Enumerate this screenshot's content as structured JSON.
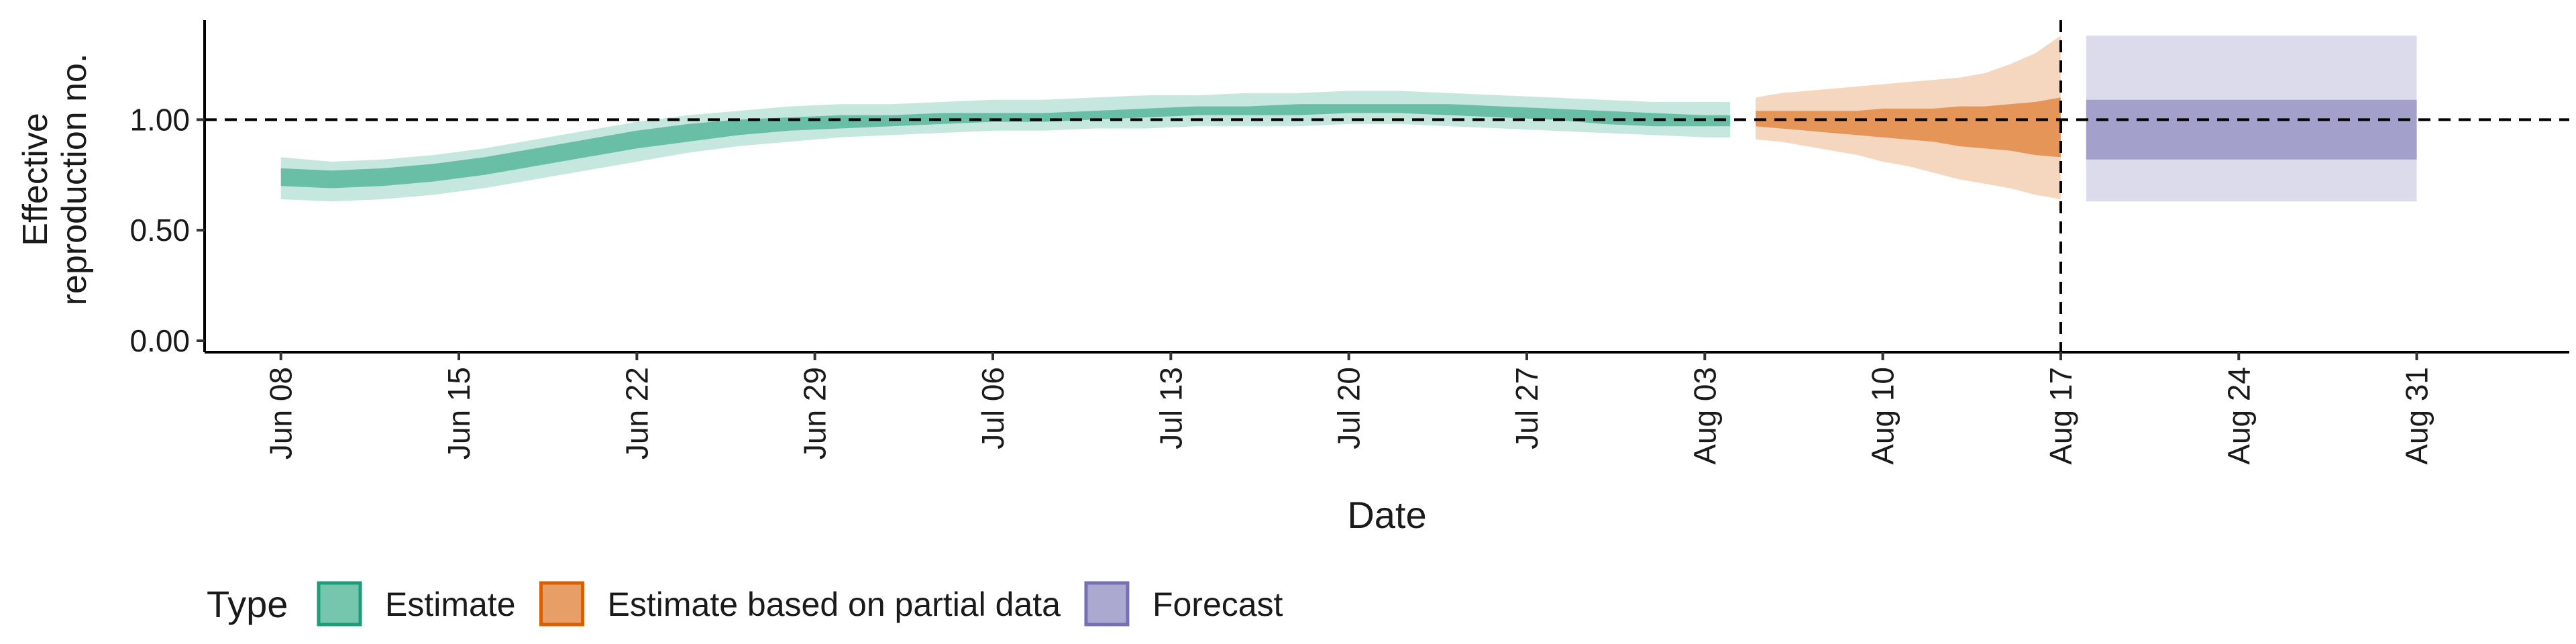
{
  "chart_data": {
    "type": "area",
    "xlabel": "Date",
    "ylabel_lines": [
      "Effective",
      "reproduction no."
    ],
    "ylim": [
      0,
      1.45
    ],
    "y_ticks": [
      0.0,
      0.5,
      1.0
    ],
    "y_tick_labels": [
      "0.00",
      "0.50",
      "1.00"
    ],
    "x_range": [
      "2020-06-05",
      "2020-09-06"
    ],
    "x_ticks": [
      "2020-06-08",
      "2020-06-15",
      "2020-06-22",
      "2020-06-29",
      "2020-07-06",
      "2020-07-13",
      "2020-07-20",
      "2020-07-27",
      "2020-08-03",
      "2020-08-10",
      "2020-08-17",
      "2020-08-24",
      "2020-08-31"
    ],
    "x_tick_labels": [
      "Jun 08",
      "Jun 15",
      "Jun 22",
      "Jun 29",
      "Jul 06",
      "Jul 13",
      "Jul 20",
      "Jul 27",
      "Aug 03",
      "Aug 10",
      "Aug 17",
      "Aug 24",
      "Aug 31"
    ],
    "reference_line_y": 1.0,
    "reference_line_x": "2020-08-17",
    "grid": false,
    "legend": {
      "title": "Type",
      "position": "bottom-left",
      "items": [
        {
          "label": "Estimate",
          "color": "#1b9e77"
        },
        {
          "label": "Estimate based on partial data",
          "color": "#d95f02"
        },
        {
          "label": "Forecast",
          "color": "#7570b3"
        }
      ]
    },
    "series": [
      {
        "name": "Estimate",
        "color": "#1b9e77",
        "x": [
          "2020-06-08",
          "2020-06-10",
          "2020-06-12",
          "2020-06-14",
          "2020-06-16",
          "2020-06-18",
          "2020-06-20",
          "2020-06-22",
          "2020-06-24",
          "2020-06-26",
          "2020-06-28",
          "2020-06-30",
          "2020-07-02",
          "2020-07-04",
          "2020-07-06",
          "2020-07-08",
          "2020-07-10",
          "2020-07-12",
          "2020-07-14",
          "2020-07-16",
          "2020-07-18",
          "2020-07-20",
          "2020-07-22",
          "2020-07-24",
          "2020-07-26",
          "2020-07-28",
          "2020-07-30",
          "2020-08-01",
          "2020-08-03",
          "2020-08-04"
        ],
        "lower_90": [
          0.64,
          0.63,
          0.64,
          0.66,
          0.69,
          0.73,
          0.77,
          0.81,
          0.85,
          0.88,
          0.9,
          0.92,
          0.93,
          0.94,
          0.95,
          0.95,
          0.96,
          0.96,
          0.97,
          0.97,
          0.97,
          0.98,
          0.98,
          0.97,
          0.96,
          0.95,
          0.94,
          0.93,
          0.92,
          0.92
        ],
        "lower_50": [
          0.7,
          0.69,
          0.7,
          0.72,
          0.75,
          0.79,
          0.83,
          0.87,
          0.9,
          0.93,
          0.95,
          0.96,
          0.97,
          0.98,
          0.99,
          0.99,
          1.0,
          1.01,
          1.02,
          1.02,
          1.02,
          1.03,
          1.03,
          1.02,
          1.01,
          1.0,
          0.98,
          0.97,
          0.97,
          0.97
        ],
        "upper_50": [
          0.78,
          0.77,
          0.78,
          0.8,
          0.83,
          0.87,
          0.91,
          0.95,
          0.98,
          1.0,
          1.01,
          1.02,
          1.02,
          1.03,
          1.03,
          1.03,
          1.04,
          1.05,
          1.06,
          1.06,
          1.07,
          1.07,
          1.07,
          1.07,
          1.06,
          1.05,
          1.04,
          1.03,
          1.02,
          1.02
        ],
        "upper_90": [
          0.83,
          0.81,
          0.82,
          0.84,
          0.87,
          0.91,
          0.95,
          0.99,
          1.02,
          1.04,
          1.06,
          1.07,
          1.07,
          1.08,
          1.09,
          1.09,
          1.1,
          1.11,
          1.11,
          1.12,
          1.12,
          1.13,
          1.13,
          1.12,
          1.11,
          1.1,
          1.09,
          1.08,
          1.08,
          1.08
        ]
      },
      {
        "name": "Estimate based on partial data",
        "color": "#d95f02",
        "x": [
          "2020-08-05",
          "2020-08-06",
          "2020-08-07",
          "2020-08-08",
          "2020-08-09",
          "2020-08-10",
          "2020-08-11",
          "2020-08-12",
          "2020-08-13",
          "2020-08-14",
          "2020-08-15",
          "2020-08-16",
          "2020-08-17"
        ],
        "lower_90": [
          0.91,
          0.9,
          0.88,
          0.86,
          0.84,
          0.81,
          0.79,
          0.76,
          0.73,
          0.71,
          0.69,
          0.66,
          0.64
        ],
        "lower_50": [
          0.97,
          0.96,
          0.95,
          0.94,
          0.93,
          0.92,
          0.91,
          0.9,
          0.88,
          0.87,
          0.86,
          0.84,
          0.83
        ],
        "upper_50": [
          1.04,
          1.04,
          1.04,
          1.04,
          1.04,
          1.05,
          1.05,
          1.05,
          1.06,
          1.06,
          1.07,
          1.08,
          1.1
        ],
        "upper_90": [
          1.1,
          1.12,
          1.13,
          1.14,
          1.15,
          1.16,
          1.17,
          1.18,
          1.19,
          1.21,
          1.25,
          1.3,
          1.38
        ]
      },
      {
        "name": "Forecast",
        "color": "#7570b3",
        "x": [
          "2020-08-18",
          "2020-08-31"
        ],
        "lower_90": [
          0.63,
          0.63
        ],
        "lower_50": [
          0.82,
          0.82
        ],
        "upper_50": [
          1.09,
          1.09
        ],
        "upper_90": [
          1.38,
          1.38
        ]
      }
    ]
  }
}
